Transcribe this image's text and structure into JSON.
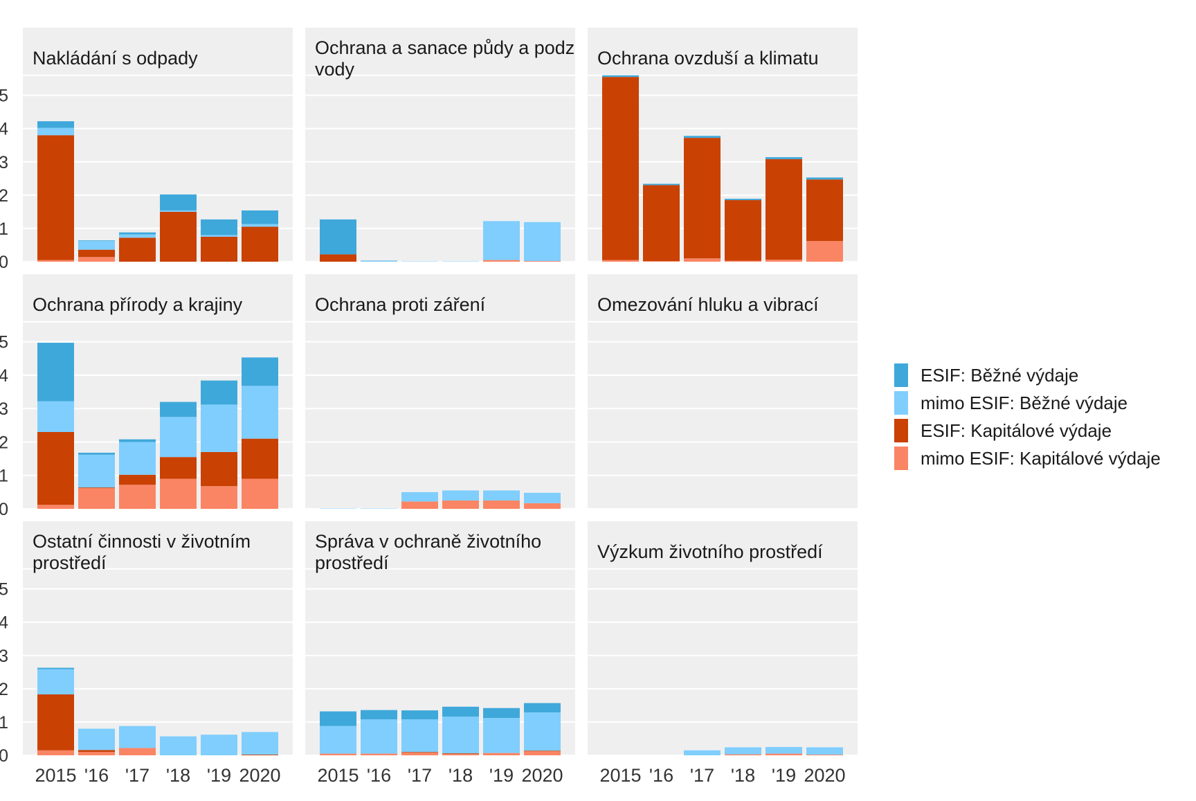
{
  "chart_data": {
    "type": "bar",
    "stacked": true,
    "categories": [
      "2015",
      "'16",
      "'17",
      "'18",
      "'19",
      "2020"
    ],
    "y_ticks": [
      "0",
      "1",
      "2",
      "3",
      "4",
      "5"
    ],
    "ylim": [
      0,
      5.2
    ],
    "grid": true,
    "legend_position": "right",
    "series_colors": {
      "mimo_kap": "#fa8564",
      "esif_kap": "#c94103",
      "mimo_bez": "#7fcefe",
      "esif_bez": "#3fa8da"
    },
    "legend": [
      {
        "key": "esif_bez",
        "label": "ESIF: Běžné výdaje"
      },
      {
        "key": "mimo_bez",
        "label": "mimo ESIF: Běžné výdaje"
      },
      {
        "key": "esif_kap",
        "label": "ESIF: Kapitálové výdaje"
      },
      {
        "key": "mimo_kap",
        "label": "mimo ESIF: Kapitálové výdaje"
      }
    ],
    "stack_order": [
      "mimo_kap",
      "esif_kap",
      "mimo_bez",
      "esif_bez"
    ],
    "panels": [
      {
        "title": [
          "Nakládání s odpady"
        ],
        "series": {
          "mimo_kap": [
            0.05,
            0.14,
            0.0,
            0.0,
            0.0,
            0.0
          ],
          "esif_kap": [
            3.75,
            0.22,
            0.72,
            1.5,
            0.75,
            1.05
          ],
          "mimo_bez": [
            0.22,
            0.26,
            0.1,
            0.04,
            0.05,
            0.08
          ],
          "esif_bez": [
            0.2,
            0.02,
            0.06,
            0.48,
            0.47,
            0.41
          ]
        }
      },
      {
        "title": [
          "Ochrana a sanace půdy a podzemní",
          "vody"
        ],
        "series": {
          "mimo_kap": [
            0.0,
            0.0,
            0.0,
            0.0,
            0.05,
            0.02
          ],
          "esif_kap": [
            0.22,
            0.0,
            0.0,
            0.0,
            0.0,
            0.0
          ],
          "mimo_bez": [
            0.0,
            0.02,
            0.01,
            0.01,
            1.17,
            1.17
          ],
          "esif_bez": [
            1.05,
            0.01,
            0.0,
            0.0,
            0.0,
            0.0
          ]
        }
      },
      {
        "title": [
          "Ochrana ovzduší a klimatu"
        ],
        "series": {
          "mimo_kap": [
            0.05,
            0.02,
            0.1,
            0.03,
            0.06,
            0.62
          ],
          "esif_kap": [
            5.5,
            2.28,
            3.62,
            1.82,
            3.02,
            1.85
          ],
          "mimo_bez": [
            0.0,
            0.0,
            0.0,
            0.0,
            0.0,
            0.0
          ],
          "esif_bez": [
            0.05,
            0.04,
            0.06,
            0.04,
            0.06,
            0.06
          ]
        }
      },
      {
        "title": [
          "Ochrana přírody a krajiny"
        ],
        "series": {
          "mimo_kap": [
            0.12,
            0.62,
            0.72,
            0.9,
            0.68,
            0.9
          ],
          "esif_kap": [
            2.18,
            0.02,
            0.3,
            0.65,
            1.02,
            1.2
          ],
          "mimo_bez": [
            0.92,
            0.98,
            0.98,
            1.2,
            1.42,
            1.58
          ],
          "esif_bez": [
            1.75,
            0.06,
            0.08,
            0.45,
            0.72,
            0.85
          ]
        }
      },
      {
        "title": [
          "Ochrana proti záření"
        ],
        "series": {
          "mimo_kap": [
            0.0,
            0.0,
            0.22,
            0.25,
            0.25,
            0.17
          ],
          "esif_kap": [
            0.0,
            0.0,
            0.0,
            0.0,
            0.0,
            0.0
          ],
          "mimo_bez": [
            0.01,
            0.01,
            0.28,
            0.3,
            0.3,
            0.31
          ],
          "esif_bez": [
            0.0,
            0.0,
            0.0,
            0.0,
            0.0,
            0.0
          ]
        }
      },
      {
        "title": [
          "Omezování hluku a vibrací"
        ],
        "series": {
          "mimo_kap": [
            0.0,
            0.0,
            0.0,
            0.0,
            0.0,
            0.0
          ],
          "esif_kap": [
            0.0,
            0.0,
            0.0,
            0.0,
            0.0,
            0.0
          ],
          "mimo_bez": [
            0.0,
            0.0,
            0.0,
            0.0,
            0.0,
            0.0
          ],
          "esif_bez": [
            0.0,
            0.0,
            0.0,
            0.0,
            0.0,
            0.0
          ]
        }
      },
      {
        "title": [
          "Ostatní činnosti v životním",
          "prostředí"
        ],
        "series": {
          "mimo_kap": [
            0.15,
            0.1,
            0.22,
            0.0,
            0.0,
            0.0
          ],
          "esif_kap": [
            1.68,
            0.06,
            0.0,
            0.0,
            0.0,
            0.02
          ],
          "mimo_bez": [
            0.76,
            0.64,
            0.66,
            0.57,
            0.62,
            0.68
          ],
          "esif_bez": [
            0.04,
            0.0,
            0.0,
            0.0,
            0.0,
            0.0
          ]
        }
      },
      {
        "title": [
          "Správa v ochraně životního",
          "prostředí"
        ],
        "series": {
          "mimo_kap": [
            0.05,
            0.05,
            0.08,
            0.04,
            0.07,
            0.12
          ],
          "esif_kap": [
            0.0,
            0.0,
            0.02,
            0.02,
            0.0,
            0.02
          ],
          "mimo_bez": [
            0.83,
            1.03,
            0.98,
            1.1,
            1.05,
            1.15
          ],
          "esif_bez": [
            0.44,
            0.28,
            0.27,
            0.3,
            0.3,
            0.28
          ]
        }
      },
      {
        "title": [
          "Výzkum životního prostředí"
        ],
        "series": {
          "mimo_kap": [
            0.0,
            0.0,
            0.0,
            0.03,
            0.05,
            0.02
          ],
          "esif_kap": [
            0.0,
            0.0,
            0.0,
            0.0,
            0.0,
            0.0
          ],
          "mimo_bez": [
            0.0,
            0.0,
            0.15,
            0.21,
            0.2,
            0.22
          ],
          "esif_bez": [
            0.0,
            0.0,
            0.0,
            0.0,
            0.0,
            0.0
          ]
        }
      }
    ]
  }
}
